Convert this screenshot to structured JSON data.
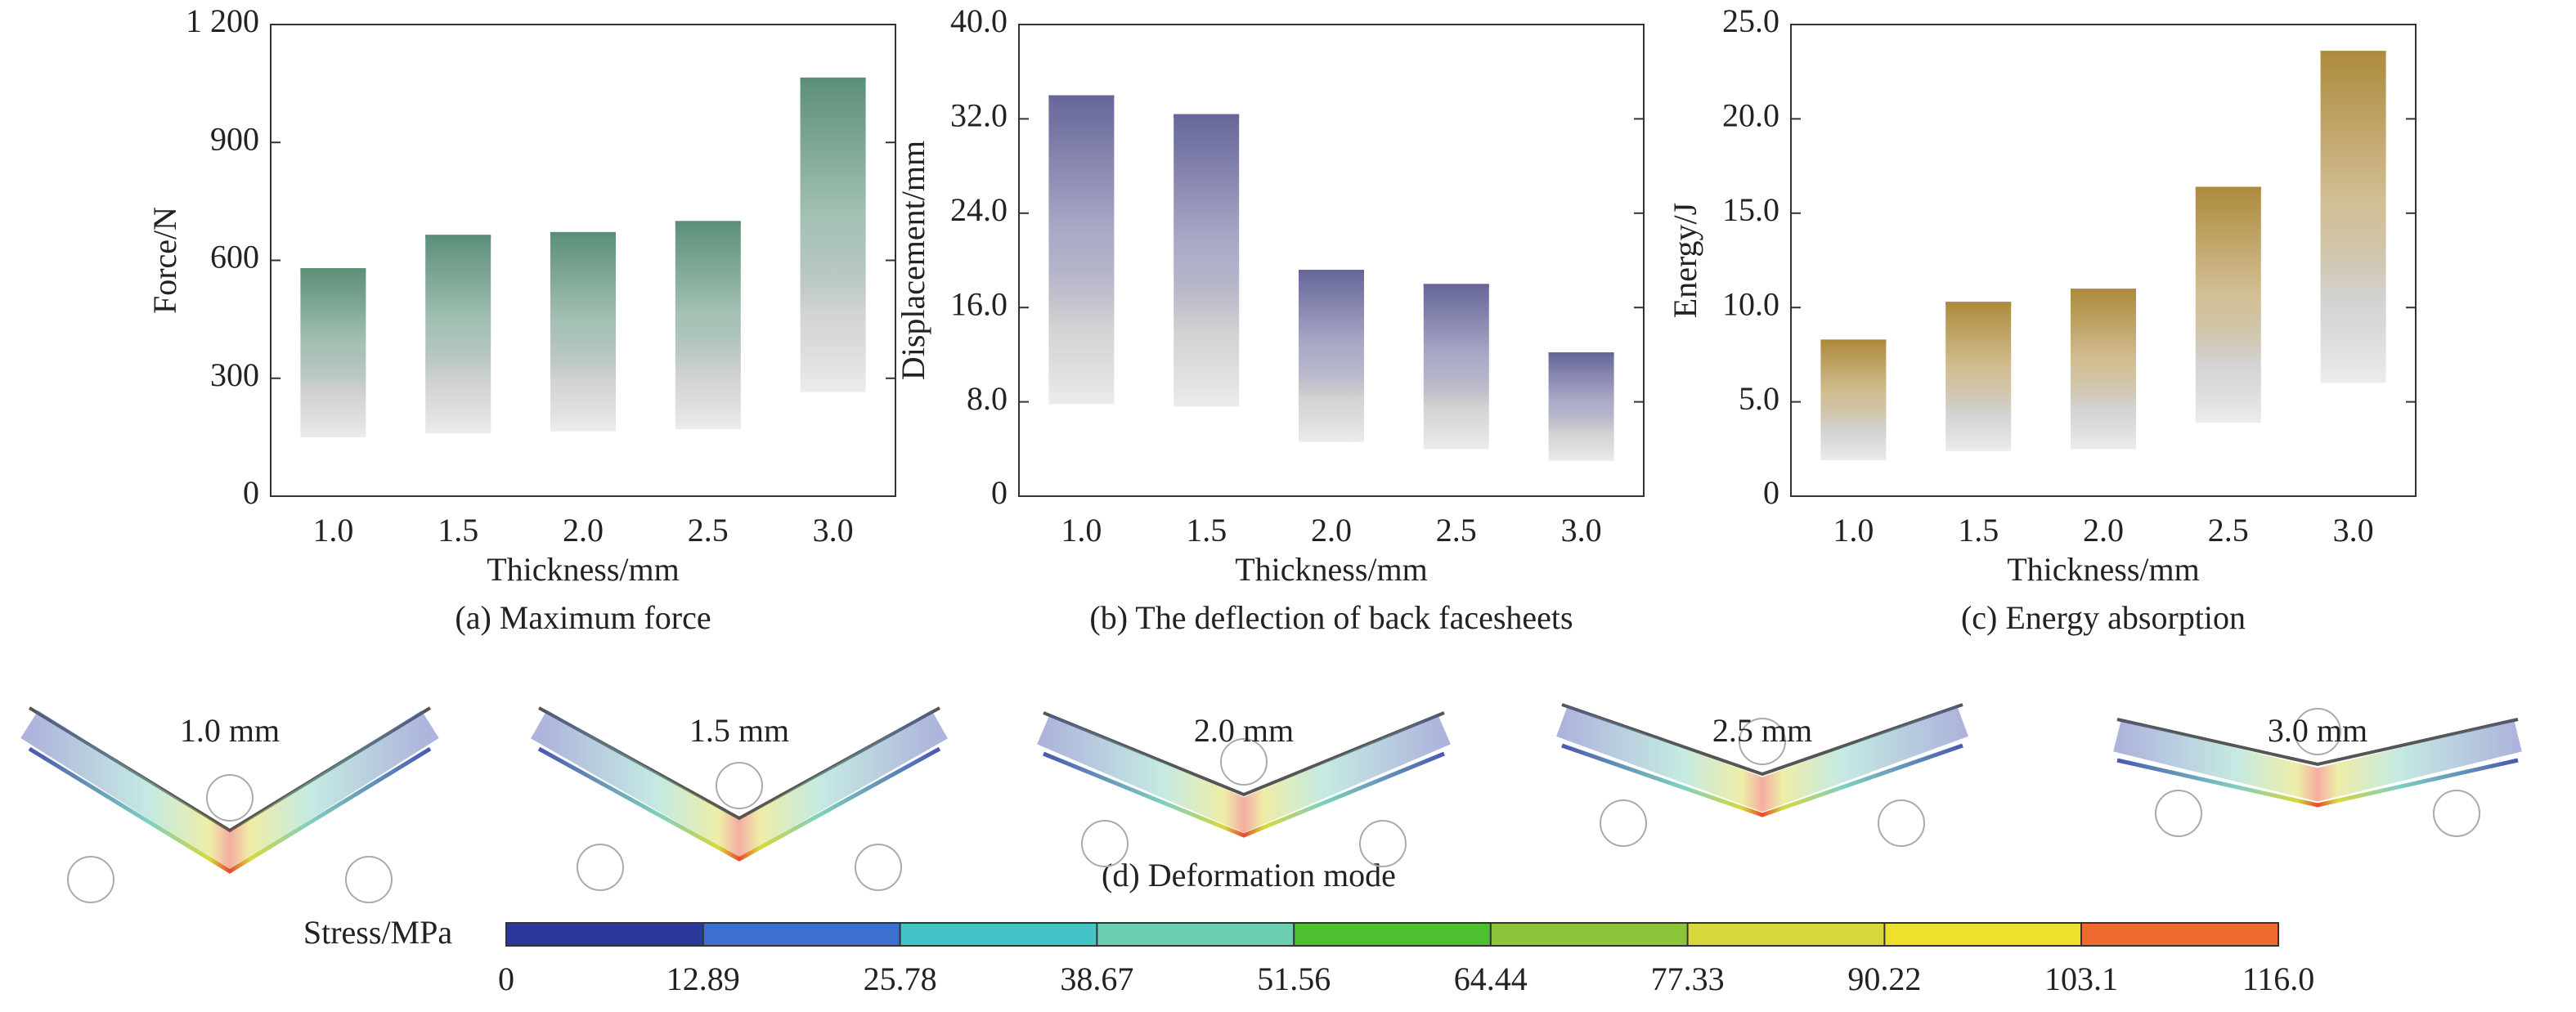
{
  "chart_data": [
    {
      "type": "bar",
      "xlabel": "Thickness/mm",
      "ylabel": "Force/N",
      "caption": "(a) Maximum force",
      "categories": [
        "1.0",
        "1.5",
        "2.0",
        "2.5",
        "3.0"
      ],
      "values": [
        580,
        665,
        672,
        700,
        1065
      ],
      "lows": [
        150,
        160,
        165,
        170,
        265
      ],
      "color": "#5b8f78",
      "ylim": [
        0,
        1200
      ],
      "yticks": [
        0,
        300,
        600,
        900,
        {
          "value": 1200,
          "label": "1 200"
        }
      ]
    },
    {
      "type": "bar",
      "xlabel": "Thickness/mm",
      "ylabel": "Displacement/mm",
      "caption": "(b) The deflection of back facesheets",
      "categories": [
        "1.0",
        "1.5",
        "2.0",
        "2.5",
        "3.0"
      ],
      "values": [
        34.0,
        32.4,
        19.2,
        18.0,
        12.2
      ],
      "lows": [
        7.8,
        7.6,
        4.6,
        4.0,
        3.0
      ],
      "color": "#66669a",
      "ylim": [
        0,
        40
      ],
      "yticks": [
        0,
        {
          "value": 8,
          "label": "8.0"
        },
        {
          "value": 16,
          "label": "16.0"
        },
        {
          "value": 24,
          "label": "24.0"
        },
        {
          "value": 32,
          "label": "32.0"
        },
        {
          "value": 40,
          "label": "40.0"
        }
      ]
    },
    {
      "type": "bar",
      "xlabel": "Thickness/mm",
      "ylabel": "Energy/J",
      "caption": "(c) Energy absorption",
      "categories": [
        "1.0",
        "1.5",
        "2.0",
        "2.5",
        "3.0"
      ],
      "values": [
        8.3,
        10.3,
        11.0,
        16.4,
        23.6
      ],
      "lows": [
        1.9,
        2.4,
        2.5,
        3.9,
        6.0
      ],
      "color": "#ad8a3c",
      "ylim": [
        0,
        25
      ],
      "yticks": [
        0,
        {
          "value": 5,
          "label": "5.0"
        },
        {
          "value": 10,
          "label": "10.0"
        },
        {
          "value": 15,
          "label": "15.0"
        },
        {
          "value": 20,
          "label": "20.0"
        },
        {
          "value": 25,
          "label": "25.0"
        }
      ]
    }
  ],
  "deformation": {
    "caption": "(d) Deformation mode",
    "labels": [
      "1.0 mm",
      "1.5 mm",
      "2.0 mm",
      "2.5 mm",
      "3.0 mm"
    ]
  },
  "colorbar": {
    "label": "Stress/MPa",
    "ticks": [
      0,
      12.89,
      25.78,
      38.67,
      51.56,
      64.44,
      77.33,
      90.22,
      103.1,
      {
        "value": 116,
        "label": "116.0"
      }
    ],
    "colors": [
      "#2b3a9a",
      "#3e6fd0",
      "#45c4c8",
      "#6ccfb4",
      "#4cc02e",
      "#8cc43a",
      "#d6d83c",
      "#f0e02e",
      "#f06a30",
      "#e8202e"
    ]
  }
}
